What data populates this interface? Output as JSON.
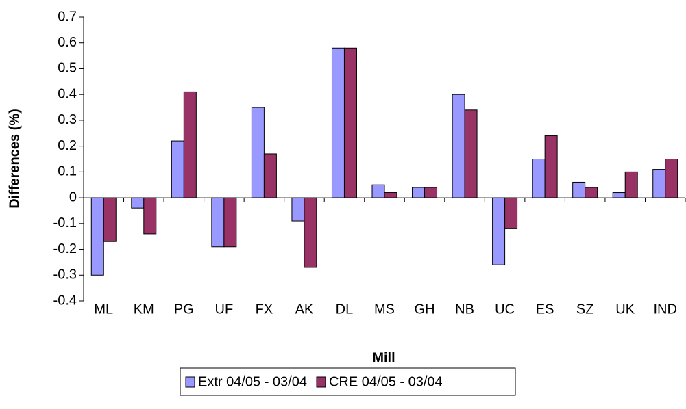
{
  "chart_data": {
    "type": "bar",
    "x_label": "Mill",
    "y_label": "Differences (%)",
    "categories": [
      "ML",
      "KM",
      "PG",
      "UF",
      "FX",
      "AK",
      "DL",
      "MS",
      "GH",
      "NB",
      "UC",
      "ES",
      "SZ",
      "UK",
      "IND"
    ],
    "series": [
      {
        "name": "Extr 04/05 - 03/04",
        "color": "#9999ff",
        "values": [
          -0.3,
          -0.04,
          0.22,
          -0.19,
          0.35,
          -0.09,
          0.58,
          0.05,
          0.04,
          0.4,
          -0.26,
          0.15,
          0.06,
          0.02,
          0.11
        ]
      },
      {
        "name": "CRE 04/05 - 03/04",
        "color": "#993366",
        "values": [
          -0.17,
          -0.14,
          0.41,
          -0.19,
          0.17,
          -0.27,
          0.58,
          0.02,
          0.04,
          0.34,
          -0.12,
          0.24,
          0.04,
          0.1,
          0.15
        ]
      }
    ],
    "ylim": [
      -0.4,
      0.7
    ],
    "yticks": [
      -0.4,
      -0.3,
      -0.2,
      -0.1,
      0,
      0.1,
      0.2,
      0.3,
      0.4,
      0.5,
      0.6,
      0.7
    ],
    "grid": false
  }
}
